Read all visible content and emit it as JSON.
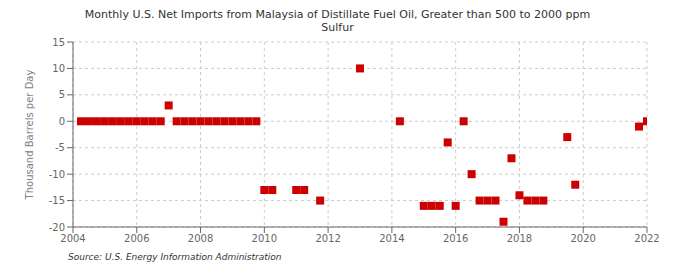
{
  "chart_data": {
    "type": "scatter",
    "title": "Monthly U.S. Net Imports from Malaysia of Distillate Fuel Oil, Greater than 500 to 2000 ppm\nSulfur",
    "y_label": "Thousand Barrels per Day",
    "annotations": [
      "Source: U.S. Energy Information Administration"
    ],
    "color": "#cc0000",
    "marker": "square",
    "grid": true,
    "xlim": [
      2004,
      2022
    ],
    "ylim": [
      -20,
      15
    ],
    "xticks": [
      2004,
      2006,
      2008,
      2010,
      2012,
      2014,
      2016,
      2018,
      2020,
      2022
    ],
    "yticks": [
      -20,
      -15,
      -10,
      -5,
      0,
      5,
      10,
      15
    ],
    "x": [
      2004.25,
      2004.5,
      2004.75,
      2005.0,
      2005.25,
      2005.5,
      2005.75,
      2006.0,
      2006.25,
      2006.5,
      2006.75,
      2007.0,
      2007.25,
      2007.5,
      2007.75,
      2008.0,
      2008.25,
      2008.5,
      2008.75,
      2009.0,
      2009.25,
      2009.5,
      2009.75,
      2010.0,
      2010.25,
      2011.0,
      2011.25,
      2011.75,
      2013.0,
      2014.25,
      2015.0,
      2015.25,
      2015.5,
      2015.75,
      2016.0,
      2016.25,
      2016.5,
      2016.75,
      2017.0,
      2017.25,
      2017.5,
      2017.75,
      2018.0,
      2018.25,
      2018.5,
      2018.75,
      2019.5,
      2019.75,
      2021.75,
      2022.0
    ],
    "values": [
      0,
      0,
      0,
      0,
      0,
      0,
      0,
      0,
      0,
      0,
      0,
      3,
      0,
      0,
      0,
      0,
      0,
      0,
      0,
      0,
      0,
      0,
      0,
      -13,
      -13,
      -13,
      -13,
      -15,
      10,
      0,
      -16,
      -16,
      -16,
      -4,
      -16,
      0,
      -10,
      -15,
      -15,
      -15,
      -19,
      -7,
      -14,
      -15,
      -15,
      -15,
      -3,
      -12,
      -1,
      0
    ]
  }
}
